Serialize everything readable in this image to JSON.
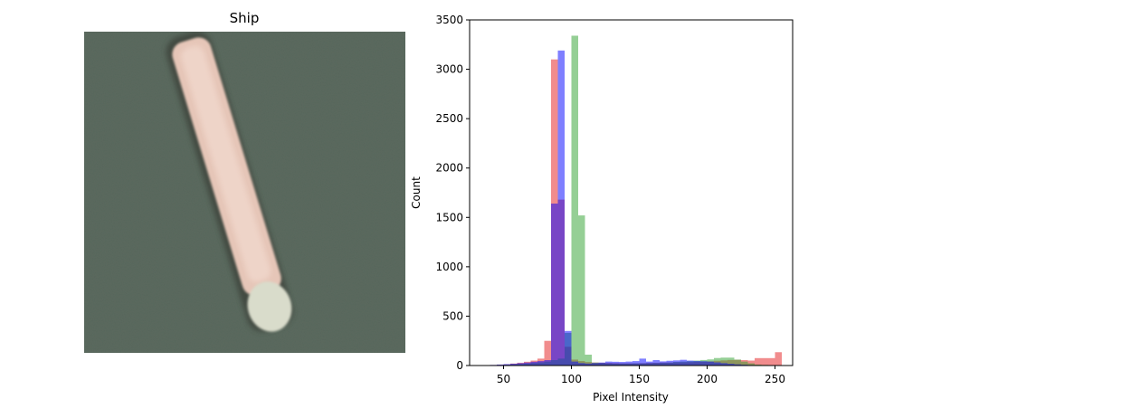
{
  "image_panel": {
    "title": "Ship",
    "colors": {
      "water": "#5b6a5f",
      "water_dark": "#4c5a50",
      "hull": "#e6c6b8",
      "hull_light": "#f2dacf",
      "hull_shadow": "#3a3f38",
      "stern": "#d9dccb"
    }
  },
  "chart_data": {
    "type": "bar",
    "title": "",
    "xlabel": "Pixel Intensity",
    "ylabel": "Count",
    "xlim": [
      25,
      263
    ],
    "ylim": [
      0,
      3500
    ],
    "xticks": [
      "50",
      "100",
      "150",
      "200",
      "250"
    ],
    "yticks": [
      "0",
      "500",
      "1000",
      "1500",
      "2000",
      "2500",
      "3000",
      "3500"
    ],
    "bar_alpha": 0.5,
    "series": [
      {
        "color": "#e41a1c",
        "bins": [
          [
            40,
            45,
            5
          ],
          [
            45,
            50,
            8
          ],
          [
            50,
            55,
            12
          ],
          [
            55,
            60,
            20
          ],
          [
            60,
            65,
            28
          ],
          [
            65,
            70,
            38
          ],
          [
            70,
            75,
            50
          ],
          [
            75,
            80,
            70
          ],
          [
            80,
            85,
            250
          ],
          [
            85,
            90,
            3100
          ],
          [
            90,
            95,
            1680
          ],
          [
            95,
            100,
            190
          ],
          [
            100,
            105,
            60
          ],
          [
            105,
            110,
            45
          ],
          [
            110,
            115,
            35
          ],
          [
            115,
            120,
            30
          ],
          [
            120,
            125,
            28
          ],
          [
            125,
            130,
            26
          ],
          [
            130,
            135,
            24
          ],
          [
            135,
            140,
            22
          ],
          [
            140,
            145,
            22
          ],
          [
            145,
            150,
            22
          ],
          [
            150,
            155,
            24
          ],
          [
            155,
            160,
            26
          ],
          [
            160,
            165,
            28
          ],
          [
            165,
            170,
            30
          ],
          [
            170,
            175,
            30
          ],
          [
            175,
            180,
            32
          ],
          [
            180,
            185,
            32
          ],
          [
            185,
            190,
            34
          ],
          [
            190,
            195,
            36
          ],
          [
            195,
            200,
            38
          ],
          [
            200,
            205,
            42
          ],
          [
            205,
            210,
            48
          ],
          [
            210,
            215,
            52
          ],
          [
            215,
            220,
            56
          ],
          [
            220,
            225,
            58
          ],
          [
            225,
            230,
            55
          ],
          [
            230,
            235,
            50
          ],
          [
            235,
            240,
            75
          ],
          [
            240,
            245,
            75
          ],
          [
            245,
            250,
            75
          ],
          [
            250,
            255,
            135
          ]
        ]
      },
      {
        "color": "#2ca02c",
        "bins": [
          [
            40,
            45,
            4
          ],
          [
            45,
            50,
            6
          ],
          [
            50,
            55,
            9
          ],
          [
            55,
            60,
            12
          ],
          [
            60,
            65,
            16
          ],
          [
            65,
            70,
            20
          ],
          [
            70,
            75,
            26
          ],
          [
            75,
            80,
            32
          ],
          [
            80,
            85,
            40
          ],
          [
            85,
            90,
            55
          ],
          [
            90,
            95,
            70
          ],
          [
            95,
            100,
            330
          ],
          [
            100,
            105,
            3340
          ],
          [
            105,
            110,
            1520
          ],
          [
            110,
            115,
            110
          ],
          [
            115,
            120,
            30
          ],
          [
            120,
            125,
            25
          ],
          [
            125,
            130,
            22
          ],
          [
            130,
            135,
            20
          ],
          [
            135,
            140,
            20
          ],
          [
            140,
            145,
            20
          ],
          [
            145,
            150,
            22
          ],
          [
            150,
            155,
            22
          ],
          [
            155,
            160,
            24
          ],
          [
            160,
            165,
            26
          ],
          [
            165,
            170,
            28
          ],
          [
            170,
            175,
            30
          ],
          [
            175,
            180,
            36
          ],
          [
            180,
            185,
            40
          ],
          [
            185,
            190,
            44
          ],
          [
            190,
            195,
            50
          ],
          [
            195,
            200,
            56
          ],
          [
            200,
            205,
            62
          ],
          [
            205,
            210,
            76
          ],
          [
            210,
            215,
            80
          ],
          [
            215,
            220,
            80
          ],
          [
            220,
            225,
            60
          ],
          [
            225,
            230,
            40
          ],
          [
            230,
            235,
            22
          ],
          [
            235,
            240,
            10
          ],
          [
            240,
            245,
            6
          ],
          [
            245,
            250,
            4
          ],
          [
            250,
            255,
            3
          ]
        ]
      },
      {
        "color": "#0000ff",
        "bins": [
          [
            40,
            45,
            6
          ],
          [
            45,
            50,
            10
          ],
          [
            50,
            55,
            14
          ],
          [
            55,
            60,
            18
          ],
          [
            60,
            65,
            24
          ],
          [
            65,
            70,
            30
          ],
          [
            70,
            75,
            38
          ],
          [
            75,
            80,
            45
          ],
          [
            80,
            85,
            55
          ],
          [
            85,
            90,
            1640
          ],
          [
            90,
            95,
            3190
          ],
          [
            95,
            100,
            350
          ],
          [
            100,
            105,
            40
          ],
          [
            105,
            110,
            25
          ],
          [
            110,
            115,
            20
          ],
          [
            115,
            120,
            25
          ],
          [
            120,
            125,
            30
          ],
          [
            125,
            130,
            40
          ],
          [
            130,
            135,
            38
          ],
          [
            135,
            140,
            36
          ],
          [
            140,
            145,
            40
          ],
          [
            145,
            150,
            45
          ],
          [
            150,
            155,
            70
          ],
          [
            155,
            160,
            40
          ],
          [
            160,
            165,
            55
          ],
          [
            165,
            170,
            42
          ],
          [
            170,
            175,
            48
          ],
          [
            175,
            180,
            52
          ],
          [
            180,
            185,
            58
          ],
          [
            185,
            190,
            50
          ],
          [
            190,
            195,
            46
          ],
          [
            195,
            200,
            44
          ],
          [
            200,
            205,
            40
          ],
          [
            205,
            210,
            32
          ],
          [
            210,
            215,
            24
          ],
          [
            215,
            220,
            18
          ],
          [
            220,
            225,
            12
          ],
          [
            225,
            230,
            8
          ],
          [
            230,
            235,
            5
          ],
          [
            235,
            240,
            3
          ],
          [
            240,
            245,
            2
          ],
          [
            245,
            250,
            1
          ],
          [
            250,
            255,
            1
          ]
        ]
      }
    ]
  }
}
